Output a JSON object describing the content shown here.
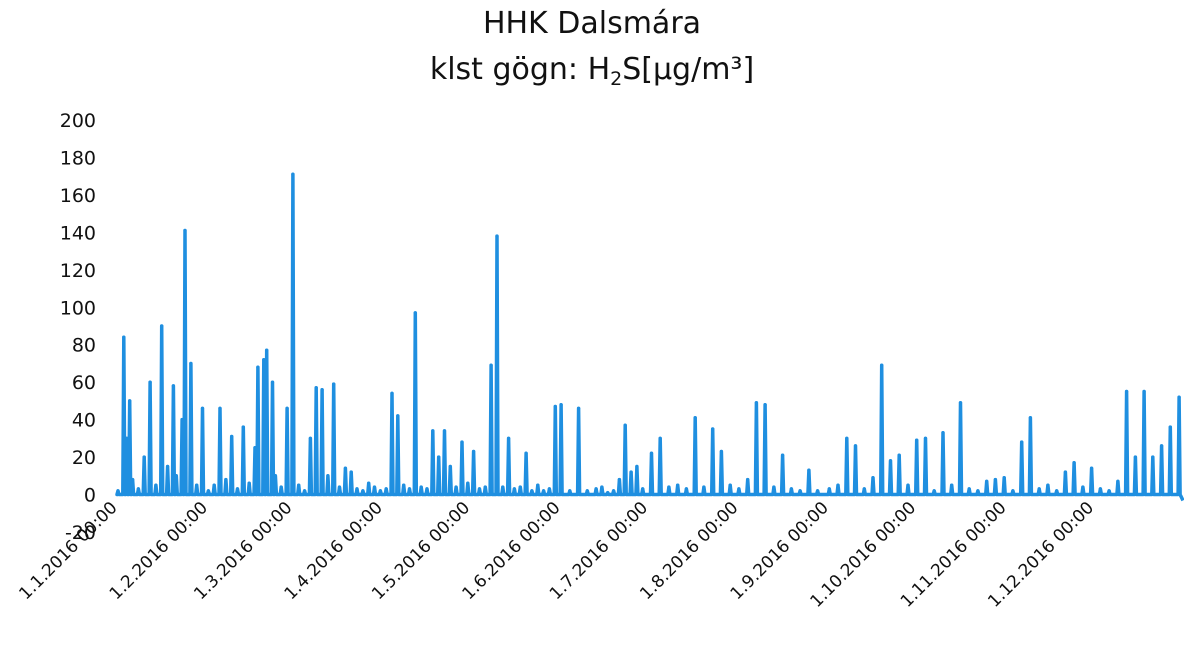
{
  "chart_data": {
    "type": "line",
    "title": "HHK Dalsmára",
    "subtitle": {
      "prefix": "klst gögn: H",
      "sub": "2",
      "suffix": "S[µg/m³]"
    },
    "xlabel": "",
    "ylabel": "",
    "ylim": [
      -20,
      200
    ],
    "y_ticks": [
      200,
      180,
      160,
      140,
      120,
      100,
      80,
      60,
      40,
      20,
      0,
      -20
    ],
    "xlim": [
      "2016-01-01",
      "2016-12-31"
    ],
    "x_tick_labels": [
      "1.1.2016 00:00",
      "1.2.2016 00:00",
      "1.3.2016 00:00",
      "1.4.2016 00:00",
      "1.5.2016 00:00",
      "1.6.2016 00:00",
      "1.7.2016 00:00",
      "1.8.2016 00:00",
      "1.9.2016 00:00",
      "1.10.2016 00:00",
      "1.11.2016 00:00",
      "1.12.2016 00:00"
    ],
    "grid": false,
    "legend": "none",
    "line_color": "#1f8fe0",
    "series": [
      {
        "x": [
          "2016-01-01",
          "2016-01-03",
          "2016-01-04",
          "2016-01-05",
          "2016-01-06",
          "2016-01-08",
          "2016-01-10",
          "2016-01-12",
          "2016-01-14",
          "2016-01-16",
          "2016-01-18",
          "2016-01-20",
          "2016-01-21",
          "2016-01-23",
          "2016-01-24",
          "2016-01-26",
          "2016-01-28",
          "2016-01-30",
          "2016-02-01",
          "2016-02-03",
          "2016-02-05",
          "2016-02-07",
          "2016-02-09",
          "2016-02-11",
          "2016-02-13",
          "2016-02-15",
          "2016-02-17",
          "2016-02-18",
          "2016-02-20",
          "2016-02-21",
          "2016-02-23",
          "2016-02-24",
          "2016-02-26",
          "2016-02-28",
          "2016-03-01",
          "2016-03-03",
          "2016-03-05",
          "2016-03-07",
          "2016-03-09",
          "2016-03-11",
          "2016-03-13",
          "2016-03-15",
          "2016-03-17",
          "2016-03-19",
          "2016-03-21",
          "2016-03-23",
          "2016-03-25",
          "2016-03-27",
          "2016-03-29",
          "2016-03-31",
          "2016-04-02",
          "2016-04-04",
          "2016-04-06",
          "2016-04-08",
          "2016-04-10",
          "2016-04-12",
          "2016-04-14",
          "2016-04-16",
          "2016-04-18",
          "2016-04-20",
          "2016-04-22",
          "2016-04-24",
          "2016-04-26",
          "2016-04-28",
          "2016-04-30",
          "2016-05-02",
          "2016-05-04",
          "2016-05-06",
          "2016-05-08",
          "2016-05-10",
          "2016-05-12",
          "2016-05-14",
          "2016-05-16",
          "2016-05-18",
          "2016-05-20",
          "2016-05-22",
          "2016-05-24",
          "2016-05-26",
          "2016-05-28",
          "2016-05-30",
          "2016-06-01",
          "2016-06-04",
          "2016-06-07",
          "2016-06-10",
          "2016-06-13",
          "2016-06-15",
          "2016-06-17",
          "2016-06-19",
          "2016-06-21",
          "2016-06-23",
          "2016-06-25",
          "2016-06-27",
          "2016-06-29",
          "2016-07-02",
          "2016-07-05",
          "2016-07-08",
          "2016-07-11",
          "2016-07-14",
          "2016-07-17",
          "2016-07-20",
          "2016-07-23",
          "2016-07-26",
          "2016-07-29",
          "2016-08-01",
          "2016-08-04",
          "2016-08-07",
          "2016-08-10",
          "2016-08-13",
          "2016-08-16",
          "2016-08-19",
          "2016-08-22",
          "2016-08-25",
          "2016-08-28",
          "2016-09-01",
          "2016-09-04",
          "2016-09-07",
          "2016-09-10",
          "2016-09-13",
          "2016-09-16",
          "2016-09-19",
          "2016-09-22",
          "2016-09-25",
          "2016-09-28",
          "2016-10-01",
          "2016-10-04",
          "2016-10-07",
          "2016-10-10",
          "2016-10-13",
          "2016-10-16",
          "2016-10-19",
          "2016-10-22",
          "2016-10-25",
          "2016-10-28",
          "2016-10-31",
          "2016-11-03",
          "2016-11-06",
          "2016-11-09",
          "2016-11-12",
          "2016-11-15",
          "2016-11-18",
          "2016-11-21",
          "2016-11-24",
          "2016-11-27",
          "2016-11-30",
          "2016-12-03",
          "2016-12-06",
          "2016-12-09",
          "2016-12-12",
          "2016-12-15",
          "2016-12-18",
          "2016-12-21",
          "2016-12-24",
          "2016-12-27",
          "2016-12-30"
        ],
        "y": [
          2,
          84,
          30,
          50,
          8,
          3,
          20,
          60,
          5,
          90,
          15,
          58,
          10,
          40,
          141,
          70,
          5,
          46,
          2,
          5,
          46,
          8,
          31,
          3,
          36,
          6,
          25,
          68,
          72,
          77,
          60,
          10,
          4,
          46,
          171,
          5,
          2,
          30,
          57,
          56,
          10,
          59,
          4,
          14,
          12,
          3,
          2,
          6,
          4,
          2,
          3,
          54,
          42,
          5,
          3,
          97,
          4,
          3,
          34,
          20,
          34,
          15,
          4,
          28,
          6,
          23,
          3,
          4,
          69,
          138,
          4,
          30,
          3,
          4,
          22,
          2,
          5,
          2,
          3,
          47,
          48,
          2,
          46,
          2,
          3,
          4,
          1,
          2,
          8,
          37,
          12,
          15,
          3,
          22,
          30,
          4,
          5,
          3,
          41,
          4,
          35,
          23,
          5,
          3,
          8,
          49,
          48,
          4,
          21,
          3,
          2,
          13,
          2,
          3,
          5,
          30,
          26,
          3,
          9,
          69,
          18,
          21,
          5,
          29,
          30,
          2,
          33,
          5,
          49,
          3,
          2,
          7,
          8,
          9,
          2,
          28,
          41,
          3,
          5,
          2,
          12,
          17,
          4,
          14,
          3,
          2,
          7,
          55,
          20,
          55,
          20,
          26,
          36,
          52
        ]
      }
    ]
  }
}
